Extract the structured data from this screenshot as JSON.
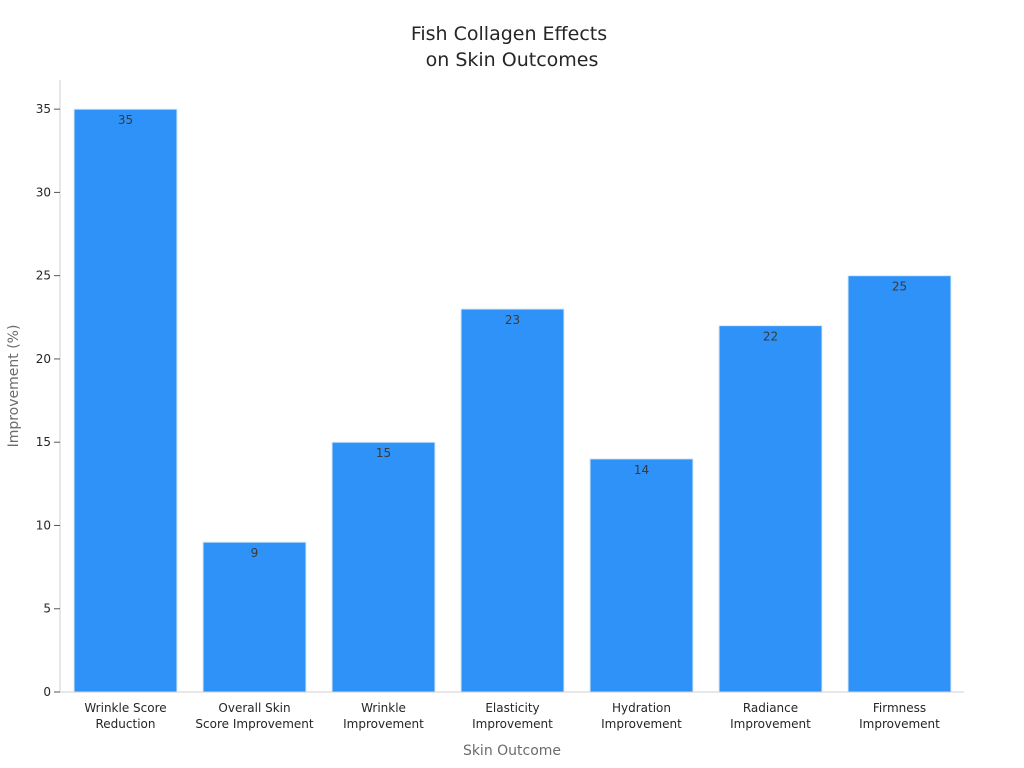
{
  "chart_data": {
    "type": "bar",
    "title": [
      "Fish Collagen Effects",
      "on Skin Outcomes"
    ],
    "xlabel": "Skin Outcome",
    "ylabel": "Improvement (%)",
    "categories": [
      [
        "Wrinkle Score",
        "Reduction"
      ],
      [
        "Overall Skin",
        "Score Improvement"
      ],
      [
        "Wrinkle",
        "Improvement"
      ],
      [
        "Elasticity",
        "Improvement"
      ],
      [
        "Hydration",
        "Improvement"
      ],
      [
        "Radiance",
        "Improvement"
      ],
      [
        "Firmness",
        "Improvement"
      ]
    ],
    "values": [
      35,
      9,
      15,
      23,
      14,
      22,
      25
    ],
    "ylim": [
      0,
      36.75
    ],
    "yticks": [
      0,
      5,
      10,
      15,
      20,
      25,
      30,
      35
    ],
    "grid": false,
    "legend": "none",
    "bar_color": "#2f92f8"
  }
}
